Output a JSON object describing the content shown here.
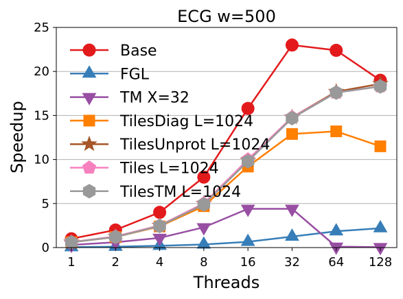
{
  "chart_data": {
    "type": "line",
    "title": "ECG w=500",
    "xlabel": "Threads",
    "ylabel": "Speedup",
    "categories": [
      "1",
      "2",
      "4",
      "8",
      "16",
      "32",
      "64",
      "128"
    ],
    "ylim": [
      0,
      25
    ],
    "yticks": [
      0,
      5,
      10,
      15,
      20,
      25
    ],
    "grid": "horizontal",
    "legend_position": "top-left",
    "series": [
      {
        "name": "Base",
        "color": "#e31a1c",
        "marker": "circle",
        "values": [
          1.0,
          2.0,
          4.0,
          8.0,
          15.8,
          23.0,
          22.4,
          19.0
        ]
      },
      {
        "name": "FGL",
        "color": "#377eb8",
        "marker": "triangle-up",
        "values": [
          0.05,
          0.1,
          0.2,
          0.35,
          0.65,
          1.25,
          1.85,
          2.2
        ]
      },
      {
        "name": "TM X=32",
        "color": "#984ea3",
        "marker": "triangle-down",
        "values": [
          0.3,
          0.6,
          1.1,
          2.3,
          4.4,
          4.4,
          0.1,
          0.05
        ]
      },
      {
        "name": "TilesDiag L=1024",
        "color": "#ff7f00",
        "marker": "square",
        "values": [
          0.6,
          1.2,
          2.4,
          4.7,
          9.2,
          12.9,
          13.2,
          11.5
        ]
      },
      {
        "name": "TilesUnprot L=1024",
        "color": "#a65628",
        "marker": "star",
        "values": [
          0.6,
          1.25,
          2.5,
          5.0,
          9.9,
          14.8,
          17.7,
          18.6
        ]
      },
      {
        "name": "Tiles L=1024",
        "color": "#f781bf",
        "marker": "pentagon",
        "values": [
          0.62,
          1.25,
          2.5,
          5.0,
          10.0,
          14.8,
          17.6,
          18.3
        ]
      },
      {
        "name": "TilesTM L=1024",
        "color": "#999999",
        "marker": "hexagon",
        "values": [
          0.6,
          1.2,
          2.45,
          4.9,
          9.8,
          14.7,
          17.6,
          18.3
        ]
      }
    ]
  }
}
